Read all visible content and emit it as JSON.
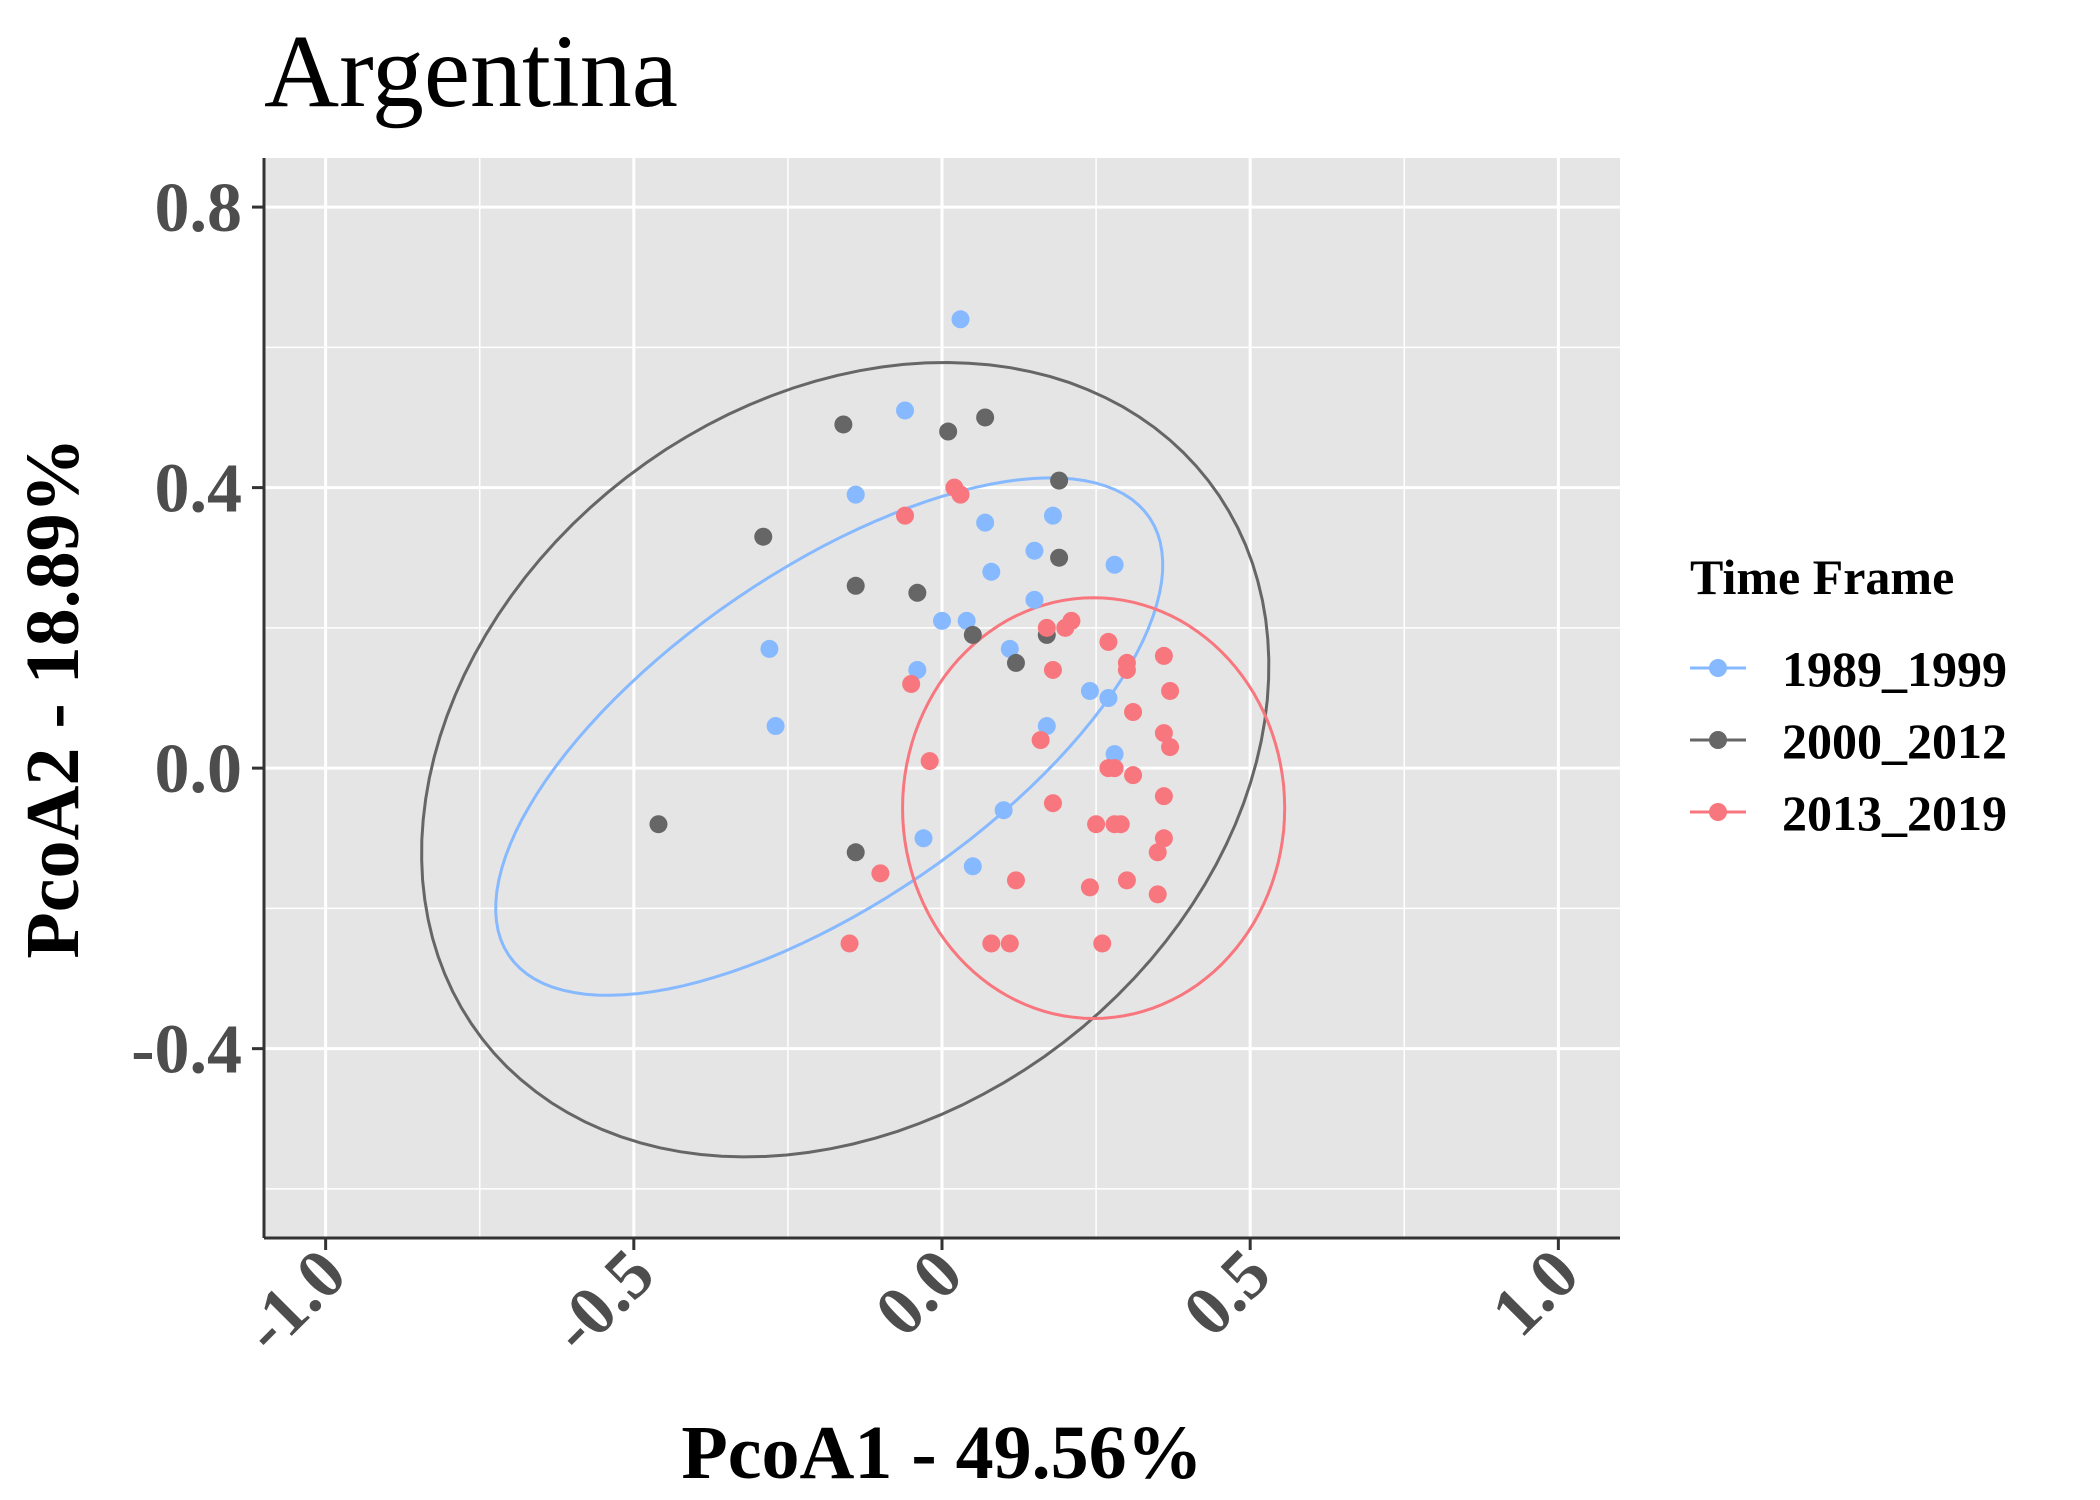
{
  "chart_data": {
    "type": "scatter",
    "title": "Argentina",
    "xlabel": "PcoA1 - 49.56%",
    "ylabel": "PcoA2 - 18.89%",
    "xlim": [
      -1.1,
      1.1
    ],
    "ylim": [
      -0.67,
      0.87
    ],
    "xticks": [
      -1.0,
      -0.5,
      0.0,
      0.5,
      1.0
    ],
    "xtick_labels": [
      "-1.0",
      "-0.5",
      "0.0",
      "0.5",
      "1.0"
    ],
    "yticks": [
      -0.4,
      0.0,
      0.4,
      0.8
    ],
    "ytick_labels": [
      "-0.4",
      "0.0",
      "0.4",
      "0.8"
    ],
    "grid": true,
    "legend": {
      "title": "Time Frame",
      "position": "right"
    },
    "series": [
      {
        "name": "1989_1999",
        "color": "#86b9ff",
        "points": [
          [
            0.03,
            0.64
          ],
          [
            -0.06,
            0.51
          ],
          [
            -0.14,
            0.39
          ],
          [
            0.07,
            0.35
          ],
          [
            0.18,
            0.36
          ],
          [
            0.08,
            0.28
          ],
          [
            0.15,
            0.31
          ],
          [
            0.28,
            0.29
          ],
          [
            0.15,
            0.24
          ],
          [
            0.0,
            0.21
          ],
          [
            0.04,
            0.21
          ],
          [
            -0.28,
            0.17
          ],
          [
            0.11,
            0.17
          ],
          [
            -0.04,
            0.14
          ],
          [
            0.24,
            0.11
          ],
          [
            0.27,
            0.1
          ],
          [
            -0.27,
            0.06
          ],
          [
            0.17,
            0.06
          ],
          [
            0.28,
            0.02
          ],
          [
            0.1,
            -0.06
          ],
          [
            -0.03,
            -0.1
          ],
          [
            0.05,
            -0.14
          ]
        ],
        "ellipse": {
          "cx": -0.183,
          "cy": 0.045,
          "rx": 0.607,
          "ry": 0.246,
          "angle_deg": 29.7
        }
      },
      {
        "name": "2000_2012",
        "color": "#666666",
        "points": [
          [
            -0.16,
            0.49
          ],
          [
            0.07,
            0.5
          ],
          [
            0.01,
            0.48
          ],
          [
            0.19,
            0.41
          ],
          [
            -0.29,
            0.33
          ],
          [
            0.19,
            0.3
          ],
          [
            -0.14,
            0.26
          ],
          [
            -0.04,
            0.25
          ],
          [
            0.05,
            0.19
          ],
          [
            0.17,
            0.19
          ],
          [
            0.12,
            0.15
          ],
          [
            -0.46,
            -0.08
          ],
          [
            -0.14,
            -0.12
          ]
        ],
        "ellipse": {
          "cx": -0.157,
          "cy": 0.012,
          "rx": 0.718,
          "ry": 0.527,
          "angle_deg": 25.2
        }
      },
      {
        "name": "2013_2019",
        "color": "#f8767d",
        "points": [
          [
            0.02,
            0.4
          ],
          [
            0.03,
            0.39
          ],
          [
            -0.06,
            0.36
          ],
          [
            0.21,
            0.21
          ],
          [
            0.17,
            0.2
          ],
          [
            0.2,
            0.2
          ],
          [
            0.27,
            0.18
          ],
          [
            0.36,
            0.16
          ],
          [
            0.3,
            0.15
          ],
          [
            0.18,
            0.14
          ],
          [
            0.3,
            0.14
          ],
          [
            -0.05,
            0.12
          ],
          [
            0.37,
            0.11
          ],
          [
            0.31,
            0.08
          ],
          [
            0.36,
            0.05
          ],
          [
            0.16,
            0.04
          ],
          [
            0.37,
            0.03
          ],
          [
            -0.02,
            0.01
          ],
          [
            0.27,
            0.0
          ],
          [
            0.28,
            0.0
          ],
          [
            0.31,
            -0.01
          ],
          [
            0.36,
            -0.04
          ],
          [
            0.18,
            -0.05
          ],
          [
            0.25,
            -0.08
          ],
          [
            0.28,
            -0.08
          ],
          [
            0.29,
            -0.08
          ],
          [
            0.36,
            -0.1
          ],
          [
            0.35,
            -0.12
          ],
          [
            -0.1,
            -0.15
          ],
          [
            0.12,
            -0.16
          ],
          [
            0.3,
            -0.16
          ],
          [
            0.24,
            -0.17
          ],
          [
            0.35,
            -0.18
          ],
          [
            -0.15,
            -0.25
          ],
          [
            0.08,
            -0.25
          ],
          [
            0.11,
            -0.25
          ],
          [
            0.26,
            -0.25
          ]
        ],
        "ellipse": {
          "cx": 0.246,
          "cy": -0.057,
          "rx": 0.31,
          "ry": 0.3,
          "angle_deg": 0
        }
      }
    ]
  }
}
